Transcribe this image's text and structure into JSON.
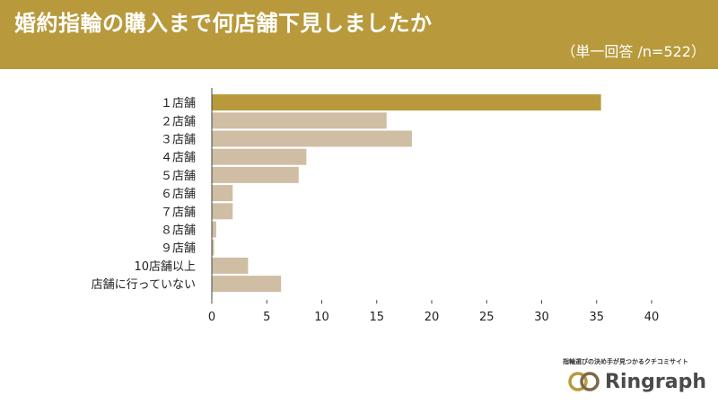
{
  "header": {
    "title": "婚約指輪の購入まで何店舗下見しましたか",
    "subtitle": "（単一回答 /n=522）",
    "bg_color": "#b89a3c"
  },
  "brand": {
    "tagline": "指輪選びの決め手が見つかるクチコミサイト",
    "name": "Ringraph",
    "logo_icon": "double-ring-icon"
  },
  "chart_data": {
    "type": "bar",
    "orientation": "horizontal",
    "categories": [
      "１店舗",
      "２店舗",
      "３店舗",
      "４店舗",
      "５店舗",
      "６店舗",
      "７店舗",
      "８店舗",
      "９店舗",
      "10店舗以上",
      "店舗に行っていない"
    ],
    "values": [
      35.4,
      15.9,
      18.2,
      8.6,
      7.9,
      1.9,
      1.9,
      0.4,
      0.2,
      3.3,
      6.3
    ],
    "xlim": [
      0,
      40
    ],
    "xticks": [
      "0",
      "5",
      "10",
      "15",
      "20",
      "25",
      "30",
      "35",
      "40"
    ],
    "highlight_color": "#b89a3c",
    "bar_color": "#cfbea4",
    "grid": false
  }
}
